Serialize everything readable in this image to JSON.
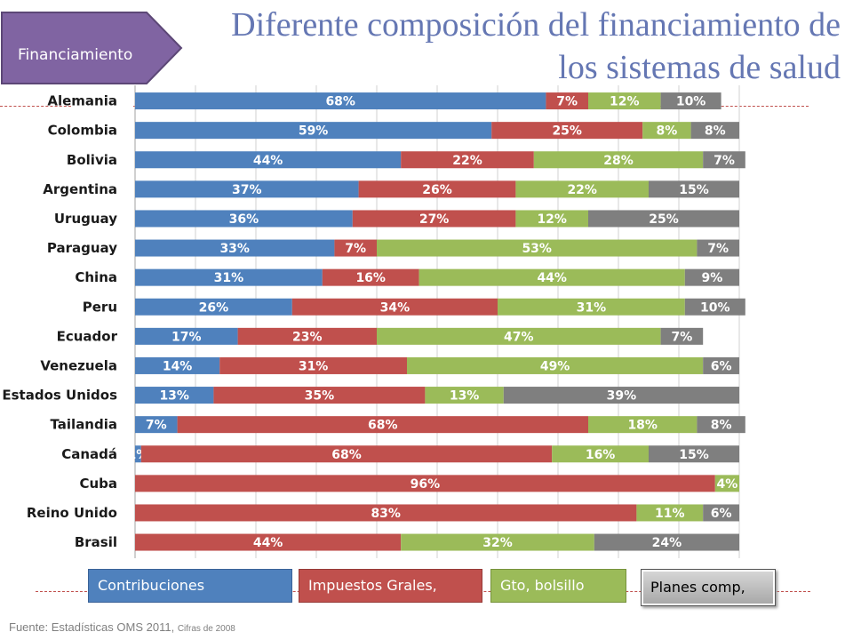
{
  "slide": {
    "title_line1": "Diferente composición del financiamiento de",
    "title_line2": "los sistemas de salud",
    "badge_label": "Financiamiento",
    "source_main": "Fuente: Estadísticas OMS 2011,",
    "source_small": "Cifras de 2008"
  },
  "legend": {
    "contribuciones": "Contribuciones",
    "impuestos": "Impuestos Grales,",
    "bolsillo": "Gto, bolsillo",
    "planes": "Planes comp,"
  },
  "colors": {
    "contribuciones": "#4f81bd",
    "impuestos": "#c0504d",
    "bolsillo": "#9bbb59",
    "planes": "#7f7f7f",
    "title": "#6577b3",
    "badge": "#8064a2"
  },
  "chart_data": {
    "type": "bar",
    "orientation": "horizontal",
    "stacked": true,
    "xlim": [
      0,
      100
    ],
    "grid": true,
    "categories": [
      "Alemania",
      "Colombia",
      "Bolivia",
      "Argentina",
      "Uruguay",
      "Paraguay",
      "China",
      "Peru",
      "Ecuador",
      "Venezuela",
      "Estados Unidos",
      "Tailandia",
      "Canadá",
      "Cuba",
      "Reino Unido",
      "Brasil"
    ],
    "series": [
      {
        "name": "Contribuciones",
        "values": [
          68,
          59,
          44,
          37,
          36,
          33,
          31,
          26,
          17,
          14,
          13,
          7,
          1,
          0,
          0,
          0
        ]
      },
      {
        "name": "Impuestos Grales,",
        "values": [
          7,
          25,
          22,
          26,
          27,
          7,
          16,
          34,
          23,
          31,
          35,
          68,
          68,
          96,
          83,
          44
        ]
      },
      {
        "name": "Gto, bolsillo",
        "values": [
          12,
          8,
          28,
          22,
          12,
          53,
          44,
          31,
          47,
          49,
          13,
          18,
          16,
          4,
          11,
          32
        ]
      },
      {
        "name": "Planes comp,",
        "values": [
          10,
          8,
          7,
          15,
          25,
          7,
          9,
          10,
          7,
          6,
          39,
          8,
          15,
          0,
          6,
          24
        ]
      }
    ],
    "value_suffix": "%"
  }
}
